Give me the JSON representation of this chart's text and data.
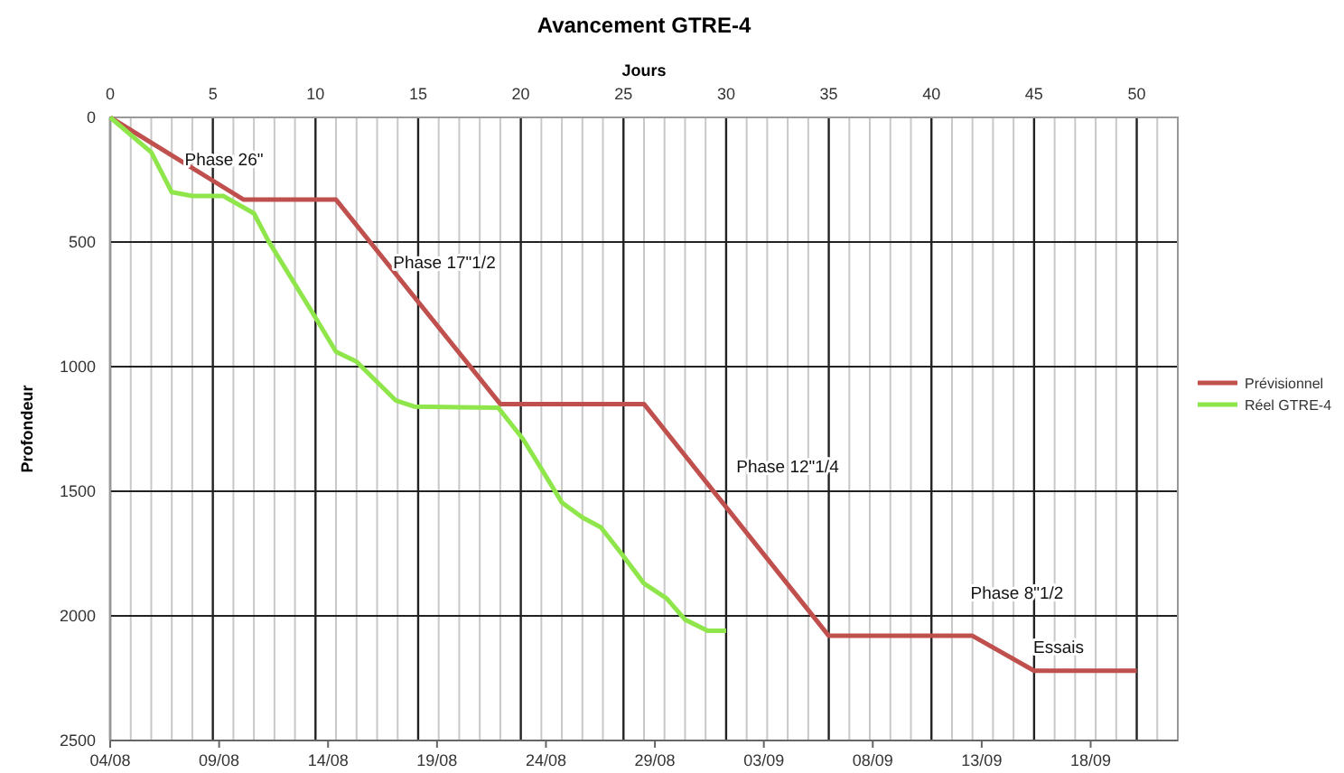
{
  "chart_data": {
    "type": "line",
    "title": "Avancement  GTRE-4",
    "x2label": "Jours",
    "ylabel": "Profondeur",
    "xlim": [
      "--08-04",
      "--09-22"
    ],
    "xticks": [
      {
        "value": "--08-04",
        "label": "04/08"
      },
      {
        "value": "--08-09",
        "label": "09/08"
      },
      {
        "value": "--08-14",
        "label": "14/08"
      },
      {
        "value": "--08-19",
        "label": "19/08"
      },
      {
        "value": "--08-24",
        "label": "24/08"
      },
      {
        "value": "--08-29",
        "label": "29/08"
      },
      {
        "value": "--09-03",
        "label": "03/09"
      },
      {
        "value": "--09-08",
        "label": "08/09"
      },
      {
        "value": "--09-13",
        "label": "13/09"
      },
      {
        "value": "--09-18",
        "label": "18/09"
      }
    ],
    "x2lim": [
      0,
      52
    ],
    "x2ticks": [
      0,
      {
        "value": 1,
        "label": null
      },
      {
        "value": 2,
        "label": null
      },
      {
        "value": 3,
        "label": null
      },
      {
        "value": 4,
        "label": null
      },
      5,
      {
        "value": 6,
        "label": null
      },
      {
        "value": 7,
        "label": null
      },
      {
        "value": 8,
        "label": null
      },
      {
        "value": 9,
        "label": null
      },
      10,
      {
        "value": 11,
        "label": null
      },
      {
        "value": 12,
        "label": null
      },
      {
        "value": 13,
        "label": null
      },
      {
        "value": 14,
        "label": null
      },
      15,
      {
        "value": 16,
        "label": null
      },
      {
        "value": 17,
        "label": null
      },
      {
        "value": 18,
        "label": null
      },
      {
        "value": 19,
        "label": null
      },
      20,
      {
        "value": 21,
        "label": null
      },
      {
        "value": 22,
        "label": null
      },
      {
        "value": 23,
        "label": null
      },
      {
        "value": 24,
        "label": null
      },
      25,
      {
        "value": 26,
        "label": null
      },
      {
        "value": 27,
        "label": null
      },
      {
        "value": 28,
        "label": null
      },
      {
        "value": 29,
        "label": null
      },
      30,
      {
        "value": 31,
        "label": null
      },
      {
        "value": 32,
        "label": null
      },
      {
        "value": 33,
        "label": null
      },
      {
        "value": 34,
        "label": null
      },
      35,
      {
        "value": 36,
        "label": null
      },
      {
        "value": 37,
        "label": null
      },
      {
        "value": 38,
        "label": null
      },
      {
        "value": 39,
        "label": null
      },
      40,
      {
        "value": 41,
        "label": null
      },
      {
        "value": 42,
        "label": null
      },
      {
        "value": 43,
        "label": null
      },
      {
        "value": 44,
        "label": null
      },
      45,
      {
        "value": 46,
        "label": null
      },
      {
        "value": 47,
        "label": null
      },
      {
        "value": 48,
        "label": null
      },
      {
        "value": 49,
        "label": null
      },
      50,
      {
        "value": 51,
        "label": null
      },
      {
        "value": 52,
        "label": null
      }
    ],
    "ylim": [
      2500,
      0
    ],
    "yticks": [
      0,
      500,
      1000,
      1500,
      2000,
      2500
    ],
    "grid": true,
    "legend": "right",
    "marker": "none",
    "line_style": "solid",
    "series": [
      {
        "name": "Prévisionnel",
        "color": "#c0504d",
        "axis": "x2",
        "x": [
          0,
          6.5,
          11,
          19,
          26,
          35,
          42,
          45,
          50
        ],
        "values": [
          0,
          330,
          330,
          1150,
          1150,
          2080,
          2080,
          2220,
          2220
        ]
      },
      {
        "name": "Réel GTRE-4",
        "color": "#8ee64a",
        "axis": "x2",
        "x": [
          0,
          2,
          3,
          4,
          5.5,
          7,
          7.7,
          9.9,
          11,
          12,
          13.9,
          14.8,
          18.9,
          20.1,
          21,
          22,
          23,
          23.9,
          24.9,
          26,
          27.1,
          28,
          29.1,
          30
        ],
        "values": [
          0,
          140,
          300,
          315,
          315,
          385,
          495,
          790,
          940,
          980,
          1135,
          1160,
          1165,
          1290,
          1410,
          1545,
          1605,
          1645,
          1750,
          1870,
          1930,
          2015,
          2060,
          2060
        ]
      }
    ],
    "annotations": [
      "Phase 26\"",
      "Phase 17\"1/2",
      "Phase 12\"1/4",
      "Phase 8\"1/2",
      "Essais"
    ]
  }
}
